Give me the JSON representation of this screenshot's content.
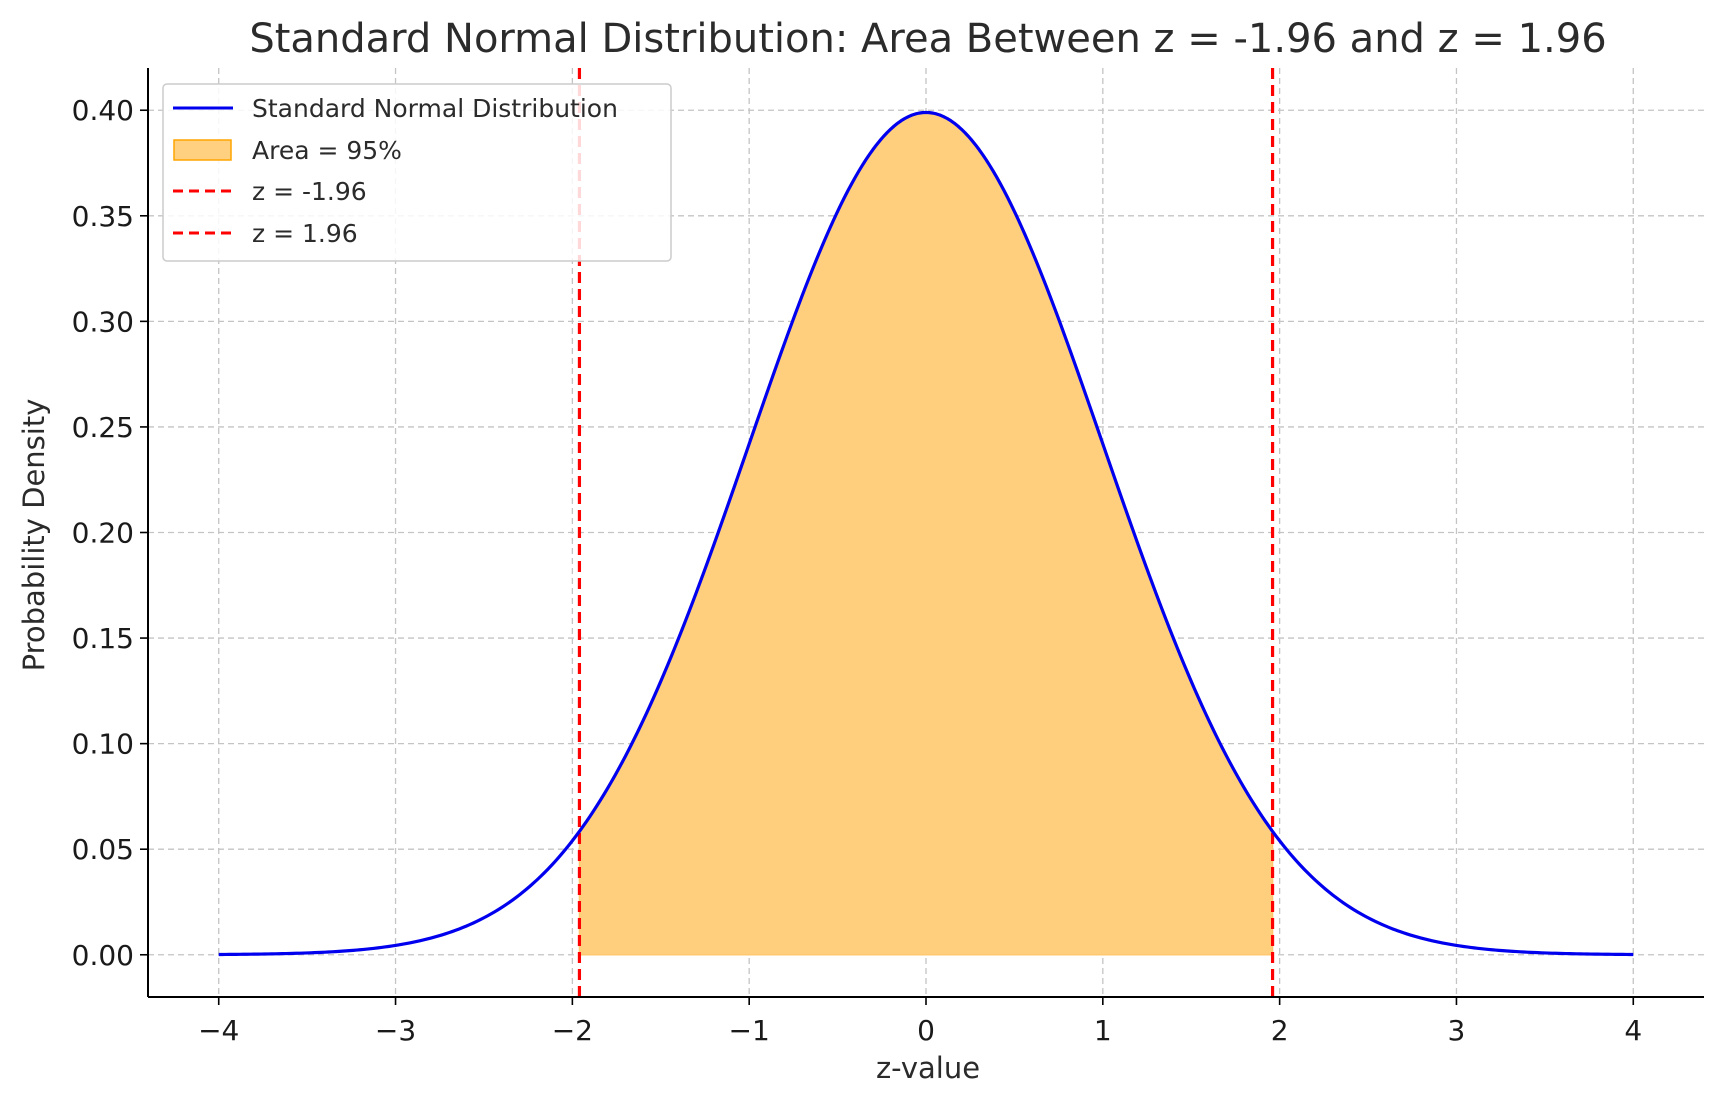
{
  "chart_data": {
    "type": "line",
    "title": "Standard Normal Distribution: Area Between z = -1.96 and z = 1.96",
    "xlabel": "z-value",
    "ylabel": "Probability Density",
    "xlim": [
      -4.4,
      4.4
    ],
    "ylim": [
      -0.02,
      0.42
    ],
    "x_ticks": [
      -4,
      -3,
      -2,
      -1,
      0,
      1,
      2,
      3,
      4
    ],
    "x_tick_labels": [
      "−4",
      "−3",
      "−2",
      "−1",
      "0",
      "1",
      "2",
      "3",
      "4"
    ],
    "y_ticks": [
      0.0,
      0.05,
      0.1,
      0.15,
      0.2,
      0.25,
      0.3,
      0.35,
      0.4
    ],
    "y_tick_labels": [
      "0.00",
      "0.05",
      "0.10",
      "0.15",
      "0.20",
      "0.25",
      "0.30",
      "0.35",
      "0.40"
    ],
    "grid": true,
    "legend_position": "top-left",
    "series": [
      {
        "name": "Standard Normal Distribution",
        "kind": "line",
        "color": "#0000ee",
        "x": [
          -4.0,
          -3.5,
          -3.0,
          -2.5,
          -2.0,
          -1.96,
          -1.5,
          -1.0,
          -0.5,
          0.0,
          0.5,
          1.0,
          1.5,
          1.96,
          2.0,
          2.5,
          3.0,
          3.5,
          4.0
        ],
        "y": [
          0.0001,
          0.0009,
          0.0044,
          0.0175,
          0.054,
          0.0584,
          0.1295,
          0.242,
          0.3521,
          0.3989,
          0.3521,
          0.242,
          0.1295,
          0.0584,
          0.054,
          0.0175,
          0.0044,
          0.0009,
          0.0001
        ]
      },
      {
        "name": "Area = 95%",
        "kind": "area",
        "color": "#ffa500",
        "x_range": [
          -1.96,
          1.96
        ]
      },
      {
        "name": "z = -1.96",
        "kind": "vline",
        "color": "#ff0000",
        "x": -1.96
      },
      {
        "name": "z = 1.96",
        "kind": "vline",
        "color": "#ff0000",
        "x": 1.96
      }
    ]
  }
}
